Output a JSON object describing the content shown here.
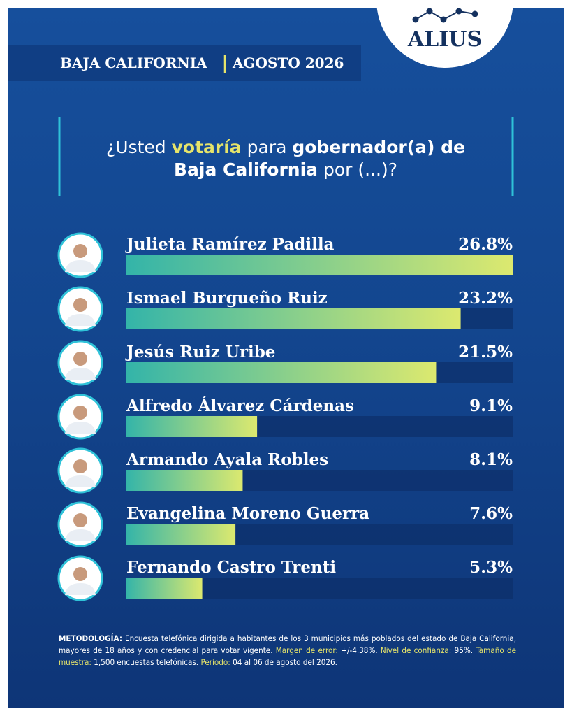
{
  "chart_data": {
    "type": "hbar",
    "brand": "ALIUS",
    "region": "BAJA CALIFORNIA",
    "date": "AGOSTO 2026",
    "title_parts": [
      "¿Usted",
      "votaría",
      "para",
      "gobernador(a) de",
      "Baja California",
      "por (...)?"
    ],
    "categories": [
      "Julieta Ramírez Padilla",
      "Ismael Burgueño Ruiz",
      "Jesús Ruiz Uribe",
      "Alfredo Álvarez Cárdenas",
      "Armando Ayala Robles",
      "Evangelina Moreno Guerra",
      "Fernando Castro Trenti"
    ],
    "values": [
      26.8,
      23.2,
      21.5,
      9.1,
      8.1,
      7.6,
      5.3
    ],
    "value_labels": [
      "26.8%",
      "23.2%",
      "21.5%",
      "9.1%",
      "8.1%",
      "7.6%",
      "5.3%"
    ],
    "bar_gradient": [
      "#33b4a9",
      "#dce96f"
    ],
    "methodology": [
      "METODOLOGÍA:",
      "Encuesta telefónica dirigida a habitantes de los 3 municipios más poblados del estado de Baja California, mayores de 18 años y con credencial para votar vigente.",
      "Margen de error:",
      "+/-4.38%.",
      "Nivel de confianza:",
      "95%.",
      "Tamaño de muestra:",
      "1,500 encuestas telefónicas.",
      "Período:",
      "04 al 06 de agosto del 2026."
    ]
  }
}
